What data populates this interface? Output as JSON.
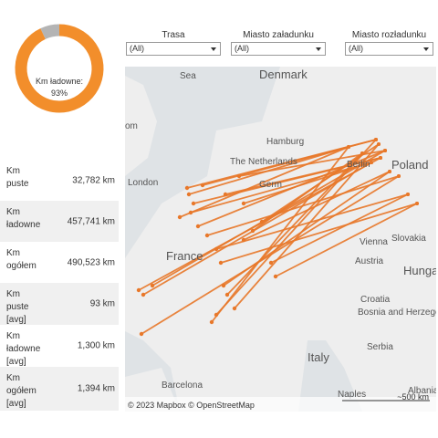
{
  "chart_data": {
    "type": "pie",
    "center_label": "Km ładowne:",
    "values": [
      93,
      7
    ],
    "value_labels": [
      "93%",
      null
    ],
    "colors": [
      "#f28e2b",
      "#b4b4b4"
    ]
  },
  "table": {
    "rows": [
      [
        "Km puste",
        "32,782 km"
      ],
      [
        "Km ładowne",
        "457,741 km"
      ],
      [
        "Km ogółem",
        "490,523 km"
      ],
      [
        "Km puste [avg]",
        "93 km"
      ],
      [
        "Km ładowne [avg]",
        "1,300 km"
      ],
      [
        "Km ogółem [avg]",
        "1,394 km"
      ]
    ]
  },
  "filters": [
    {
      "label": "Trasa",
      "value": "(All)"
    },
    {
      "label": "Miasto załadunku",
      "value": "(All)"
    },
    {
      "label": "Miasto rozładunku",
      "value": "(All)"
    }
  ],
  "map": {
    "labels": [
      "Sea",
      "Denmark",
      "Hamburg",
      "The Netherlands",
      "Berlin",
      "Poland",
      "London",
      "Germ",
      "France",
      "Austria",
      "Vienna",
      "Slovakia",
      "Hungary",
      "Croatia",
      "Bosnia and Herzegovina",
      "Serbia",
      "Italy",
      "Barcelona",
      "Naples",
      "Albania",
      "om"
    ],
    "attribution": "© 2023 Mapbox © OpenStreetMap",
    "scale": "~500 km"
  }
}
